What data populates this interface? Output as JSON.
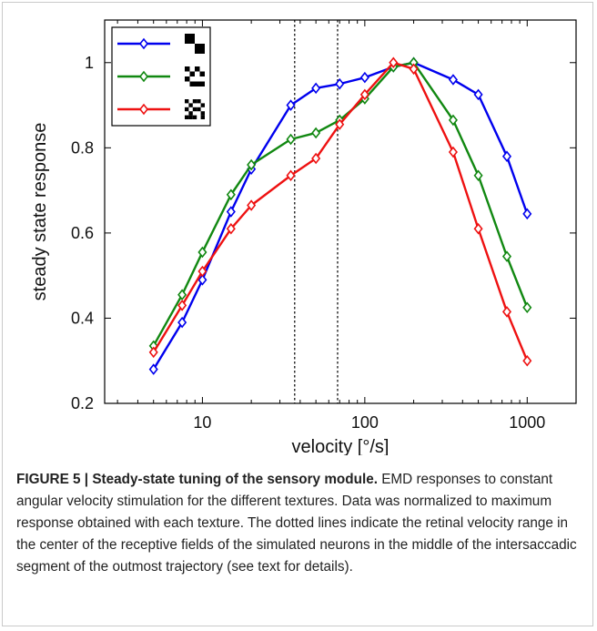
{
  "chart_data": {
    "type": "line",
    "title": "",
    "xlabel": "velocity [°/s]",
    "ylabel": "steady state response",
    "xscale": "log",
    "xlim": [
      2.5,
      2000
    ],
    "ylim": [
      0.2,
      1.1
    ],
    "xticks": [
      10,
      100,
      1000
    ],
    "xtick_labels": [
      "10",
      "100",
      "1000"
    ],
    "yticks": [
      0.2,
      0.4,
      0.6,
      0.8,
      1.0
    ],
    "ytick_labels": [
      "0.2",
      "0.4",
      "0.6",
      "0.8",
      "1"
    ],
    "grid": false,
    "legend_position": "top-left",
    "marker": "diamond",
    "reference_lines": [
      37,
      68
    ],
    "x": [
      5,
      7.5,
      10,
      15,
      20,
      35,
      50,
      70,
      100,
      150,
      200,
      350,
      500,
      750,
      1000
    ],
    "series": [
      {
        "color": "#0000ee",
        "legend_icon": "texture-coarse",
        "values": [
          0.28,
          0.39,
          0.49,
          0.65,
          0.75,
          0.9,
          0.94,
          0.95,
          0.965,
          0.99,
          1.0,
          0.96,
          0.925,
          0.78,
          0.645
        ]
      },
      {
        "color": "#118811",
        "legend_icon": "texture-medium",
        "values": [
          0.335,
          0.455,
          0.555,
          0.69,
          0.76,
          0.82,
          0.835,
          0.865,
          0.915,
          0.99,
          1.0,
          0.865,
          0.735,
          0.545,
          0.425
        ]
      },
      {
        "color": "#ee1111",
        "legend_icon": "texture-fine",
        "values": [
          0.32,
          0.43,
          0.51,
          0.61,
          0.665,
          0.735,
          0.775,
          0.855,
          0.925,
          1.0,
          0.985,
          0.79,
          0.61,
          0.415,
          0.3
        ]
      }
    ]
  },
  "caption": {
    "head": "FIGURE 5 | Steady-state tuning of the sensory module.",
    "body": " EMD responses to constant angular velocity stimulation for the different textures. Data was normalized to maximum response obtained with each texture. The dotted lines indicate the retinal velocity range in the center of the receptive fields of the simulated neurons in the middle of the intersaccadic segment of the outmost trajectory (see text for details)."
  }
}
